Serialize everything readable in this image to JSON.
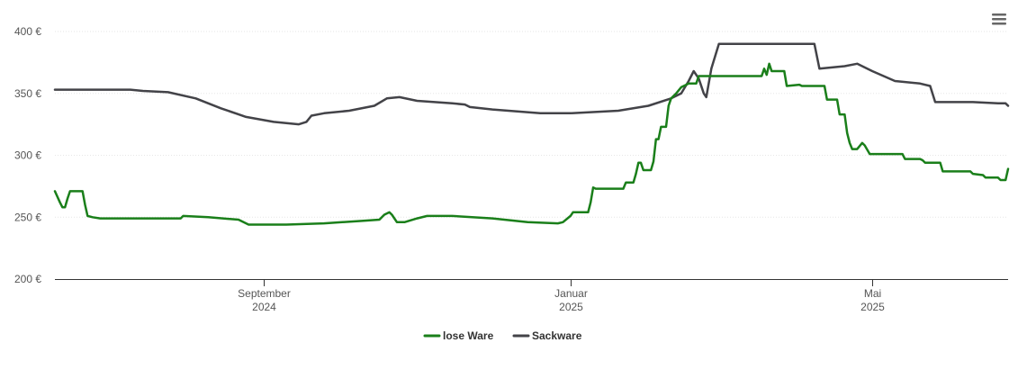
{
  "menu_icon": "hamburger-menu-icon",
  "chart_data": {
    "type": "line",
    "title": "",
    "xlabel": "",
    "ylabel": "",
    "ylim": [
      200,
      400
    ],
    "y_ticks": [
      {
        "value": 200,
        "label": "200 €"
      },
      {
        "value": 250,
        "label": "250 €"
      },
      {
        "value": 300,
        "label": "300 €"
      },
      {
        "value": 350,
        "label": "350 €"
      },
      {
        "value": 400,
        "label": "400 €"
      }
    ],
    "xlim": [
      "2024-06-10",
      "2025-06-24"
    ],
    "x_ticks": [
      {
        "date": "2024-09-01",
        "line1": "September",
        "line2": "2024"
      },
      {
        "date": "2025-01-01",
        "line1": "Januar",
        "line2": "2025"
      },
      {
        "date": "2025-05-01",
        "line1": "Mai",
        "line2": "2025"
      }
    ],
    "grid": "horizontal",
    "legend_position": "bottom",
    "series": [
      {
        "name": "lose Ware",
        "color": "#1a7f1a",
        "points": [
          [
            "2024-06-10",
            271
          ],
          [
            "2024-06-12",
            262
          ],
          [
            "2024-06-13",
            258
          ],
          [
            "2024-06-14",
            258
          ],
          [
            "2024-06-15",
            265
          ],
          [
            "2024-06-16",
            271
          ],
          [
            "2024-06-18",
            271
          ],
          [
            "2024-06-21",
            271
          ],
          [
            "2024-06-22",
            260
          ],
          [
            "2024-06-23",
            251
          ],
          [
            "2024-06-25",
            250
          ],
          [
            "2024-06-28",
            249
          ],
          [
            "2024-07-15",
            249
          ],
          [
            "2024-07-30",
            249
          ],
          [
            "2024-07-31",
            251
          ],
          [
            "2024-08-10",
            250
          ],
          [
            "2024-08-22",
            248
          ],
          [
            "2024-08-24",
            246
          ],
          [
            "2024-08-26",
            244
          ],
          [
            "2024-09-10",
            244
          ],
          [
            "2024-09-25",
            245
          ],
          [
            "2024-10-10",
            247
          ],
          [
            "2024-10-17",
            248
          ],
          [
            "2024-10-19",
            252
          ],
          [
            "2024-10-21",
            254
          ],
          [
            "2024-10-22",
            252
          ],
          [
            "2024-10-24",
            246
          ],
          [
            "2024-10-27",
            246
          ],
          [
            "2024-11-01",
            249
          ],
          [
            "2024-11-05",
            251
          ],
          [
            "2024-11-15",
            251
          ],
          [
            "2024-12-01",
            249
          ],
          [
            "2024-12-15",
            246
          ],
          [
            "2024-12-27",
            245
          ],
          [
            "2024-12-29",
            246
          ],
          [
            "2025-01-01",
            251
          ],
          [
            "2025-01-02",
            254
          ],
          [
            "2025-01-08",
            254
          ],
          [
            "2025-01-09",
            262
          ],
          [
            "2025-01-10",
            274
          ],
          [
            "2025-01-11",
            273
          ],
          [
            "2025-01-15",
            273
          ],
          [
            "2025-01-22",
            273
          ],
          [
            "2025-01-23",
            278
          ],
          [
            "2025-01-26",
            278
          ],
          [
            "2025-01-27",
            285
          ],
          [
            "2025-01-28",
            294
          ],
          [
            "2025-01-29",
            294
          ],
          [
            "2025-01-30",
            288
          ],
          [
            "2025-02-02",
            288
          ],
          [
            "2025-02-03",
            295
          ],
          [
            "2025-02-04",
            313
          ],
          [
            "2025-02-05",
            313
          ],
          [
            "2025-02-06",
            323
          ],
          [
            "2025-02-07",
            323
          ],
          [
            "2025-02-08",
            323
          ],
          [
            "2025-02-09",
            340
          ],
          [
            "2025-02-10",
            346
          ],
          [
            "2025-02-12",
            350
          ],
          [
            "2025-02-14",
            355
          ],
          [
            "2025-02-17",
            358
          ],
          [
            "2025-02-20",
            358
          ],
          [
            "2025-02-21",
            364
          ],
          [
            "2025-02-24",
            364
          ],
          [
            "2025-03-18",
            364
          ],
          [
            "2025-03-19",
            370
          ],
          [
            "2025-03-20",
            365
          ],
          [
            "2025-03-21",
            374
          ],
          [
            "2025-03-22",
            368
          ],
          [
            "2025-03-27",
            368
          ],
          [
            "2025-03-28",
            356
          ],
          [
            "2025-04-02",
            357
          ],
          [
            "2025-04-03",
            356
          ],
          [
            "2025-04-12",
            356
          ],
          [
            "2025-04-13",
            345
          ],
          [
            "2025-04-17",
            345
          ],
          [
            "2025-04-18",
            333
          ],
          [
            "2025-04-20",
            333
          ],
          [
            "2025-04-21",
            318
          ],
          [
            "2025-04-22",
            310
          ],
          [
            "2025-04-23",
            305
          ],
          [
            "2025-04-25",
            305
          ],
          [
            "2025-04-27",
            310
          ],
          [
            "2025-04-28",
            308
          ],
          [
            "2025-04-30",
            301
          ],
          [
            "2025-05-07",
            301
          ],
          [
            "2025-05-13",
            301
          ],
          [
            "2025-05-14",
            297
          ],
          [
            "2025-05-20",
            297
          ],
          [
            "2025-05-21",
            296
          ],
          [
            "2025-05-22",
            294
          ],
          [
            "2025-05-28",
            294
          ],
          [
            "2025-05-29",
            287
          ],
          [
            "2025-06-09",
            287
          ],
          [
            "2025-06-10",
            285
          ],
          [
            "2025-06-14",
            284
          ],
          [
            "2025-06-15",
            282
          ],
          [
            "2025-06-20",
            282
          ],
          [
            "2025-06-21",
            280
          ],
          [
            "2025-06-23",
            280
          ],
          [
            "2025-06-24",
            289
          ]
        ]
      },
      {
        "name": "Sackware",
        "color": "#434348",
        "points": [
          [
            "2024-06-10",
            353
          ],
          [
            "2024-07-10",
            353
          ],
          [
            "2024-07-15",
            352
          ],
          [
            "2024-07-25",
            351
          ],
          [
            "2024-08-05",
            346
          ],
          [
            "2024-08-15",
            338
          ],
          [
            "2024-08-25",
            331
          ],
          [
            "2024-09-05",
            327
          ],
          [
            "2024-09-15",
            325
          ],
          [
            "2024-09-18",
            327
          ],
          [
            "2024-09-20",
            332
          ],
          [
            "2024-09-25",
            334
          ],
          [
            "2024-10-05",
            336
          ],
          [
            "2024-10-15",
            340
          ],
          [
            "2024-10-20",
            346
          ],
          [
            "2024-10-25",
            347
          ],
          [
            "2024-11-01",
            344
          ],
          [
            "2024-11-15",
            342
          ],
          [
            "2024-11-20",
            341
          ],
          [
            "2024-11-22",
            339
          ],
          [
            "2024-12-01",
            337
          ],
          [
            "2024-12-20",
            334
          ],
          [
            "2025-01-01",
            334
          ],
          [
            "2025-01-20",
            336
          ],
          [
            "2025-02-01",
            340
          ],
          [
            "2025-02-10",
            346
          ],
          [
            "2025-02-14",
            350
          ],
          [
            "2025-02-17",
            360
          ],
          [
            "2025-02-19",
            368
          ],
          [
            "2025-02-21",
            362
          ],
          [
            "2025-02-23",
            350
          ],
          [
            "2025-02-24",
            347
          ],
          [
            "2025-02-26",
            370
          ],
          [
            "2025-03-01",
            390
          ],
          [
            "2025-03-15",
            390
          ],
          [
            "2025-04-01",
            390
          ],
          [
            "2025-04-08",
            390
          ],
          [
            "2025-04-10",
            370
          ],
          [
            "2025-04-20",
            372
          ],
          [
            "2025-04-25",
            374
          ],
          [
            "2025-05-01",
            368
          ],
          [
            "2025-05-10",
            360
          ],
          [
            "2025-05-20",
            358
          ],
          [
            "2025-05-24",
            356
          ],
          [
            "2025-05-26",
            343
          ],
          [
            "2025-06-10",
            343
          ],
          [
            "2025-06-20",
            342
          ],
          [
            "2025-06-23",
            342
          ],
          [
            "2025-06-24",
            340
          ]
        ]
      }
    ]
  }
}
